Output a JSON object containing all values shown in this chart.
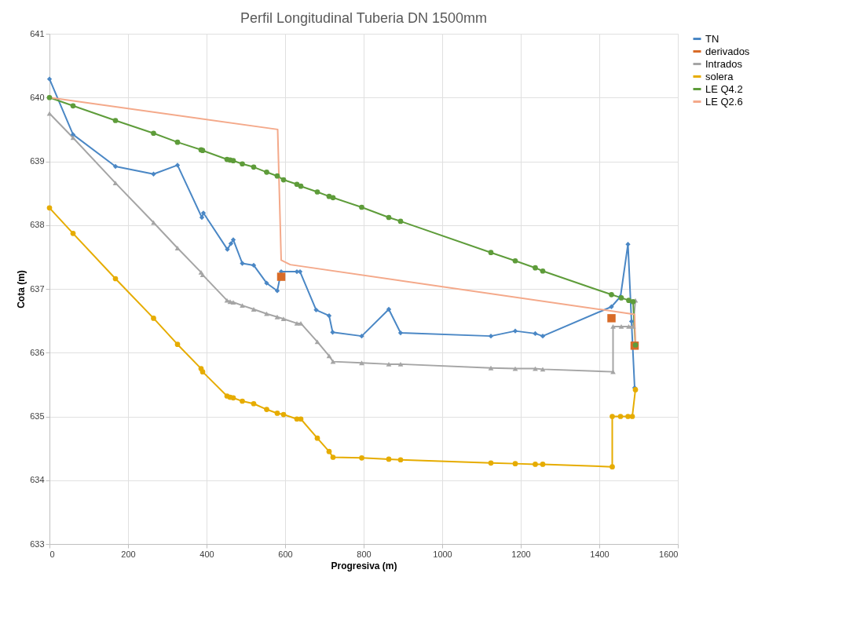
{
  "chart_data": {
    "type": "line",
    "title": "Perfil Longitudinal  Tuberia DN 1500mm",
    "xlabel": "Progresiva (m)",
    "ylabel": "Cota (m)",
    "xlim": [
      0,
      1600
    ],
    "xticks": [
      0,
      200,
      400,
      600,
      800,
      1000,
      1200,
      1400,
      1600
    ],
    "ylim": [
      633,
      641
    ],
    "yticks": [
      633,
      634,
      635,
      636,
      637,
      638,
      639,
      640,
      641
    ],
    "grid": true,
    "legend": "right",
    "series": [
      {
        "name": "TN",
        "color": "#4a87c5",
        "type": "line",
        "marker": "diamond",
        "x": [
          0,
          60,
          168,
          265,
          326,
          388,
          392,
          453,
          462,
          468,
          491,
          520,
          553,
          580,
          590,
          630,
          638,
          679,
          712,
          721,
          795,
          864,
          894,
          1124,
          1186,
          1237,
          1256,
          1431,
          1454,
          1473,
          1482,
          1490
        ],
        "values": [
          640.29,
          639.42,
          638.92,
          638.8,
          638.94,
          638.12,
          638.19,
          637.62,
          637.71,
          637.77,
          637.4,
          637.37,
          637.09,
          636.97,
          637.27,
          637.27,
          637.27,
          636.67,
          636.58,
          636.32,
          636.26,
          636.68,
          636.31,
          636.26,
          636.34,
          636.3,
          636.26,
          636.72,
          636.88,
          637.7,
          636.49,
          635.45
        ]
      },
      {
        "name": "derivados",
        "color": "#d86b28",
        "type": "scatter",
        "marker": "square",
        "x": [
          590,
          1431,
          1490
        ],
        "values": [
          637.19,
          636.54,
          636.11
        ]
      },
      {
        "name": "Intrados",
        "color": "#a5a5a5",
        "type": "line",
        "marker": "triangle",
        "x": [
          0,
          60,
          168,
          265,
          326,
          386,
          390,
          452,
          460,
          468,
          491,
          520,
          553,
          580,
          596,
          630,
          640,
          682,
          712,
          722,
          795,
          864,
          894,
          1124,
          1186,
          1237,
          1256,
          1435,
          1435,
          1456,
          1475,
          1486,
          1492
        ],
        "values": [
          639.75,
          639.37,
          638.66,
          638.04,
          637.64,
          637.26,
          637.22,
          636.82,
          636.8,
          636.79,
          636.74,
          636.68,
          636.61,
          636.56,
          636.53,
          636.46,
          636.46,
          636.17,
          635.95,
          635.86,
          635.84,
          635.82,
          635.82,
          635.76,
          635.75,
          635.75,
          635.74,
          635.7,
          636.41,
          636.41,
          636.41,
          636.41,
          636.82
        ]
      },
      {
        "name": "solera",
        "color": "#e6ac00",
        "type": "line",
        "marker": "circle",
        "x": [
          0,
          60,
          168,
          265,
          326,
          386,
          390,
          452,
          460,
          468,
          491,
          520,
          553,
          580,
          596,
          630,
          640,
          682,
          712,
          722,
          795,
          864,
          894,
          1124,
          1186,
          1237,
          1256,
          1433,
          1433,
          1454,
          1473,
          1484,
          1492
        ],
        "values": [
          638.27,
          637.87,
          637.16,
          636.54,
          636.13,
          635.75,
          635.7,
          635.32,
          635.3,
          635.29,
          635.24,
          635.2,
          635.11,
          635.05,
          635.03,
          634.96,
          634.96,
          634.66,
          634.45,
          634.36,
          634.35,
          634.33,
          634.32,
          634.27,
          634.26,
          634.25,
          634.25,
          634.21,
          635.0,
          635.0,
          635.0,
          635.0,
          635.42
        ]
      },
      {
        "name": "LE Q4.2",
        "color": "#5e9c3a",
        "type": "line",
        "marker": "circle",
        "x": [
          0,
          60,
          168,
          265,
          326,
          386,
          390,
          452,
          460,
          468,
          491,
          520,
          553,
          580,
          596,
          630,
          640,
          682,
          712,
          722,
          795,
          864,
          894,
          1124,
          1186,
          1237,
          1256,
          1431,
          1456,
          1475,
          1486,
          1492
        ],
        "values": [
          640.0,
          639.87,
          639.64,
          639.44,
          639.3,
          639.18,
          639.17,
          639.03,
          639.02,
          639.01,
          638.96,
          638.91,
          638.83,
          638.77,
          638.71,
          638.64,
          638.61,
          638.52,
          638.45,
          638.43,
          638.28,
          638.12,
          638.06,
          637.57,
          637.44,
          637.33,
          637.28,
          636.91,
          636.86,
          636.82,
          636.8,
          636.12
        ]
      },
      {
        "name": "LE Q2.6",
        "color": "#f4a98a",
        "type": "line",
        "marker": "none",
        "x": [
          0,
          581,
          590,
          613,
          1490,
          1492
        ],
        "values": [
          640.0,
          639.5,
          637.45,
          637.38,
          636.6,
          636.1
        ]
      }
    ]
  }
}
